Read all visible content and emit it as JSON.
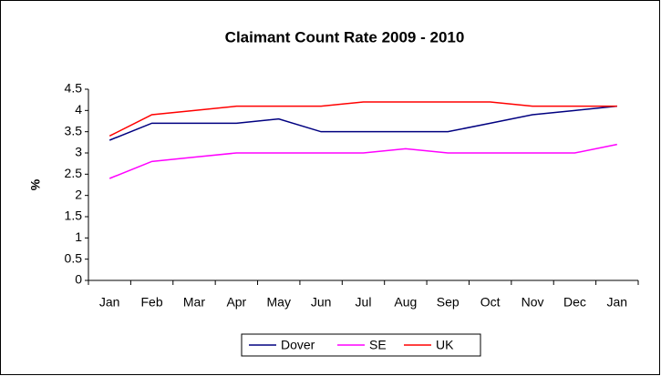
{
  "chart_data": {
    "type": "line",
    "title": "Claimant Count Rate 2009 - 2010",
    "y_label": "%",
    "categories": [
      "Jan",
      "Feb",
      "Mar",
      "Apr",
      "May",
      "Jun",
      "Jul",
      "Aug",
      "Sep",
      "Oct",
      "Nov",
      "Dec",
      "Jan"
    ],
    "series": [
      {
        "name": "Dover",
        "color": "#000080",
        "values": [
          3.3,
          3.7,
          3.7,
          3.7,
          3.8,
          3.5,
          3.5,
          3.5,
          3.5,
          3.7,
          3.9,
          4.0,
          4.1
        ]
      },
      {
        "name": "SE",
        "color": "#ff00ff",
        "values": [
          2.4,
          2.8,
          2.9,
          3.0,
          3.0,
          3.0,
          3.0,
          3.1,
          3.0,
          3.0,
          3.0,
          3.0,
          3.2
        ]
      },
      {
        "name": "UK",
        "color": "#ff0000",
        "values": [
          3.4,
          3.9,
          4.0,
          4.1,
          4.1,
          4.1,
          4.2,
          4.2,
          4.2,
          4.2,
          4.1,
          4.1,
          4.1
        ]
      }
    ],
    "ylim": [
      0,
      4.5
    ],
    "yticks": [
      0,
      0.5,
      1,
      1.5,
      2,
      2.5,
      3,
      3.5,
      4,
      4.5
    ],
    "grid": false,
    "legend": "bottom"
  }
}
